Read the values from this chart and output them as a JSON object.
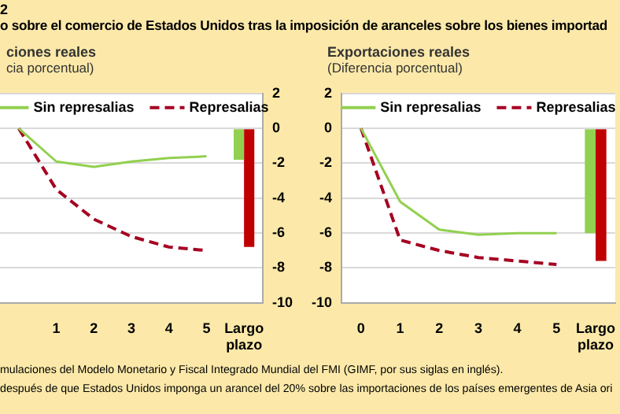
{
  "chart_data": [
    {
      "type": "line",
      "title": "ciones reales",
      "subtitle": "cia porcentual)",
      "categories": [
        null,
        "1",
        "2",
        "3",
        "4",
        "5",
        "Largo plazo"
      ],
      "series": [
        {
          "name": "Sin represalias",
          "color": "#92d050",
          "axis": "y2",
          "values": [
            0,
            -1.9,
            -2.2,
            -1.9,
            -1.7,
            -1.6,
            null
          ]
        },
        {
          "name": "Represalias",
          "color": "#a50021",
          "line_style": "dashed",
          "axis": "y2",
          "values": [
            0,
            -3.5,
            -5.2,
            -6.2,
            -6.8,
            -7.0,
            null
          ]
        },
        {
          "type": "bar",
          "color": "#92d050",
          "axis": "y2",
          "values": [
            null,
            null,
            null,
            null,
            null,
            null,
            -1.8
          ]
        },
        {
          "type": "bar",
          "color": "#c00000",
          "axis": "y2",
          "values": [
            null,
            null,
            null,
            null,
            null,
            null,
            -6.8
          ]
        }
      ],
      "y2lim": [
        -10,
        2
      ],
      "y2ticks": [
        -10,
        -8,
        -6,
        -4,
        -2,
        0,
        2
      ],
      "grid": "y",
      "legend": "top",
      "marker": "none",
      "annotations": [
        "2",
        "o sobre el comercio de Estados Unidos tras la imposición de aranceles sobre los bienes importad",
        "mulaciones del Modelo Monetario y Fiscal Integrado Mundial del FMI (GIMF, por sus siglas en inglés).",
        "después de que Estados Unidos imponga un arancel del 20% sobre las importaciones de los países emergentes de Asia ori"
      ]
    },
    {
      "type": "line",
      "title": "Exportaciones reales",
      "subtitle": "(Diferencia porcentual)",
      "categories": [
        "0",
        "1",
        "2",
        "3",
        "4",
        "5",
        "Largo plazo"
      ],
      "series": [
        {
          "name": "Sin represalias",
          "color": "#92d050",
          "values": [
            0,
            -4.2,
            -5.8,
            -6.1,
            -6.0,
            -6.0,
            null
          ]
        },
        {
          "name": "Represalias",
          "color": "#a50021",
          "line_style": "dashed",
          "values": [
            0,
            -6.4,
            -7.0,
            -7.4,
            -7.6,
            -7.8,
            null
          ]
        },
        {
          "type": "bar",
          "color": "#92d050",
          "values": [
            null,
            null,
            null,
            null,
            null,
            null,
            -6.0
          ]
        },
        {
          "type": "bar",
          "color": "#c00000",
          "values": [
            null,
            null,
            null,
            null,
            null,
            null,
            -7.6
          ]
        }
      ],
      "ylim": [
        -10,
        2
      ],
      "yticks": [
        -10,
        -8,
        -6,
        -4,
        -2,
        0,
        2
      ],
      "grid": "y",
      "legend": "top",
      "marker": "none"
    }
  ]
}
